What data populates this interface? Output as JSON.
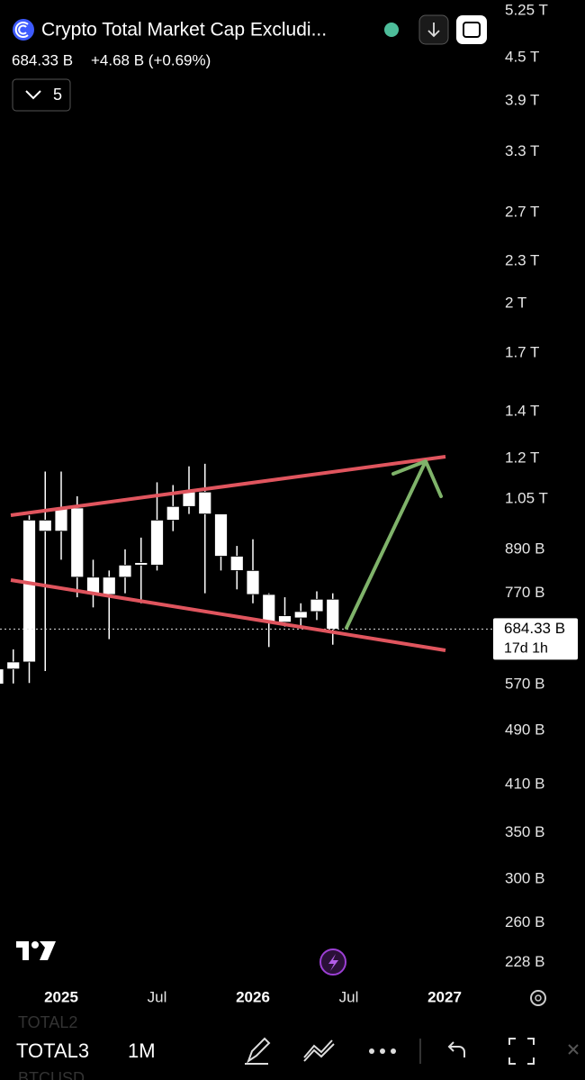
{
  "chart_data": {
    "type": "candlestick",
    "title": "Crypto Total Market Cap Excludi...",
    "log_scale": true,
    "grid": false,
    "color": "#ffffff",
    "categories": [
      null,
      null,
      null,
      null,
      "2025",
      null,
      null,
      null,
      null,
      null,
      "Jul",
      null,
      null,
      null,
      null,
      null,
      "2026",
      null,
      null,
      null,
      null,
      null,
      "Jul",
      null,
      null,
      null,
      null,
      null,
      "2027"
    ],
    "open": [
      571,
      600,
      614,
      980,
      945,
      1020,
      812,
      767,
      812,
      845,
      845,
      980,
      1025,
      1075,
      1000,
      870,
      830,
      767,
      700,
      710,
      725,
      755,
      null,
      null,
      null,
      null,
      null,
      null,
      null
    ],
    "high": [
      614,
      640,
      995,
      1150,
      1150,
      1060,
      860,
      830,
      890,
      925,
      1110,
      1100,
      1170,
      1180,
      1000,
      900,
      920,
      770,
      760,
      745,
      775,
      770,
      null,
      null,
      null,
      null,
      null,
      null,
      null
    ],
    "low": [
      560,
      572,
      573,
      596,
      860,
      760,
      735,
      662,
      770,
      745,
      830,
      945,
      1000,
      770,
      830,
      780,
      745,
      645,
      690,
      690,
      705,
      650,
      null,
      null,
      null,
      null,
      null,
      null,
      null
    ],
    "close": [
      600,
      614,
      980,
      945,
      1020,
      812,
      767,
      812,
      845,
      852,
      980,
      1025,
      1075,
      1000,
      870,
      830,
      767,
      700,
      715,
      725,
      755,
      684.33,
      null,
      null,
      null,
      null,
      null,
      null,
      null
    ],
    "ylim": [
      214,
      5440
    ],
    "yticks": [
      {
        "value": 5250,
        "label": "5.25 T"
      },
      {
        "value": 4500,
        "label": "4.5 T"
      },
      {
        "value": 3900,
        "label": "3.9 T"
      },
      {
        "value": 3300,
        "label": "3.3 T"
      },
      {
        "value": 2700,
        "label": "2.7 T"
      },
      {
        "value": 2300,
        "label": "2.3 T"
      },
      {
        "value": 2000,
        "label": "2 T"
      },
      {
        "value": 1700,
        "label": "1.7 T"
      },
      {
        "value": 1400,
        "label": "1.4 T"
      },
      {
        "value": 1200,
        "label": "1.2 T"
      },
      {
        "value": 1050,
        "label": "1.05 T"
      },
      {
        "value": 890,
        "label": "890 B"
      },
      {
        "value": 770,
        "label": "770 B"
      },
      {
        "value": 570,
        "label": "570 B"
      },
      {
        "value": 490,
        "label": "490 B"
      },
      {
        "value": 410,
        "label": "410 B"
      },
      {
        "value": 350,
        "label": "350 B"
      },
      {
        "value": 300,
        "label": "300 B"
      },
      {
        "value": 260,
        "label": "260 B"
      },
      {
        "value": 228,
        "label": "228 B"
      }
    ],
    "last_price": {
      "value": 684.33,
      "label": "684.33 B"
    },
    "countdown": "17d 1h"
  },
  "header": {
    "price": "684.33 B",
    "change": "+4.68 B (+0.69%)",
    "indicators": "5"
  },
  "toolbar": {
    "prev_symbol": "TOTAL2",
    "symbol": "TOTAL3",
    "interval": "1M",
    "next_symbol": "BTCUSD"
  }
}
